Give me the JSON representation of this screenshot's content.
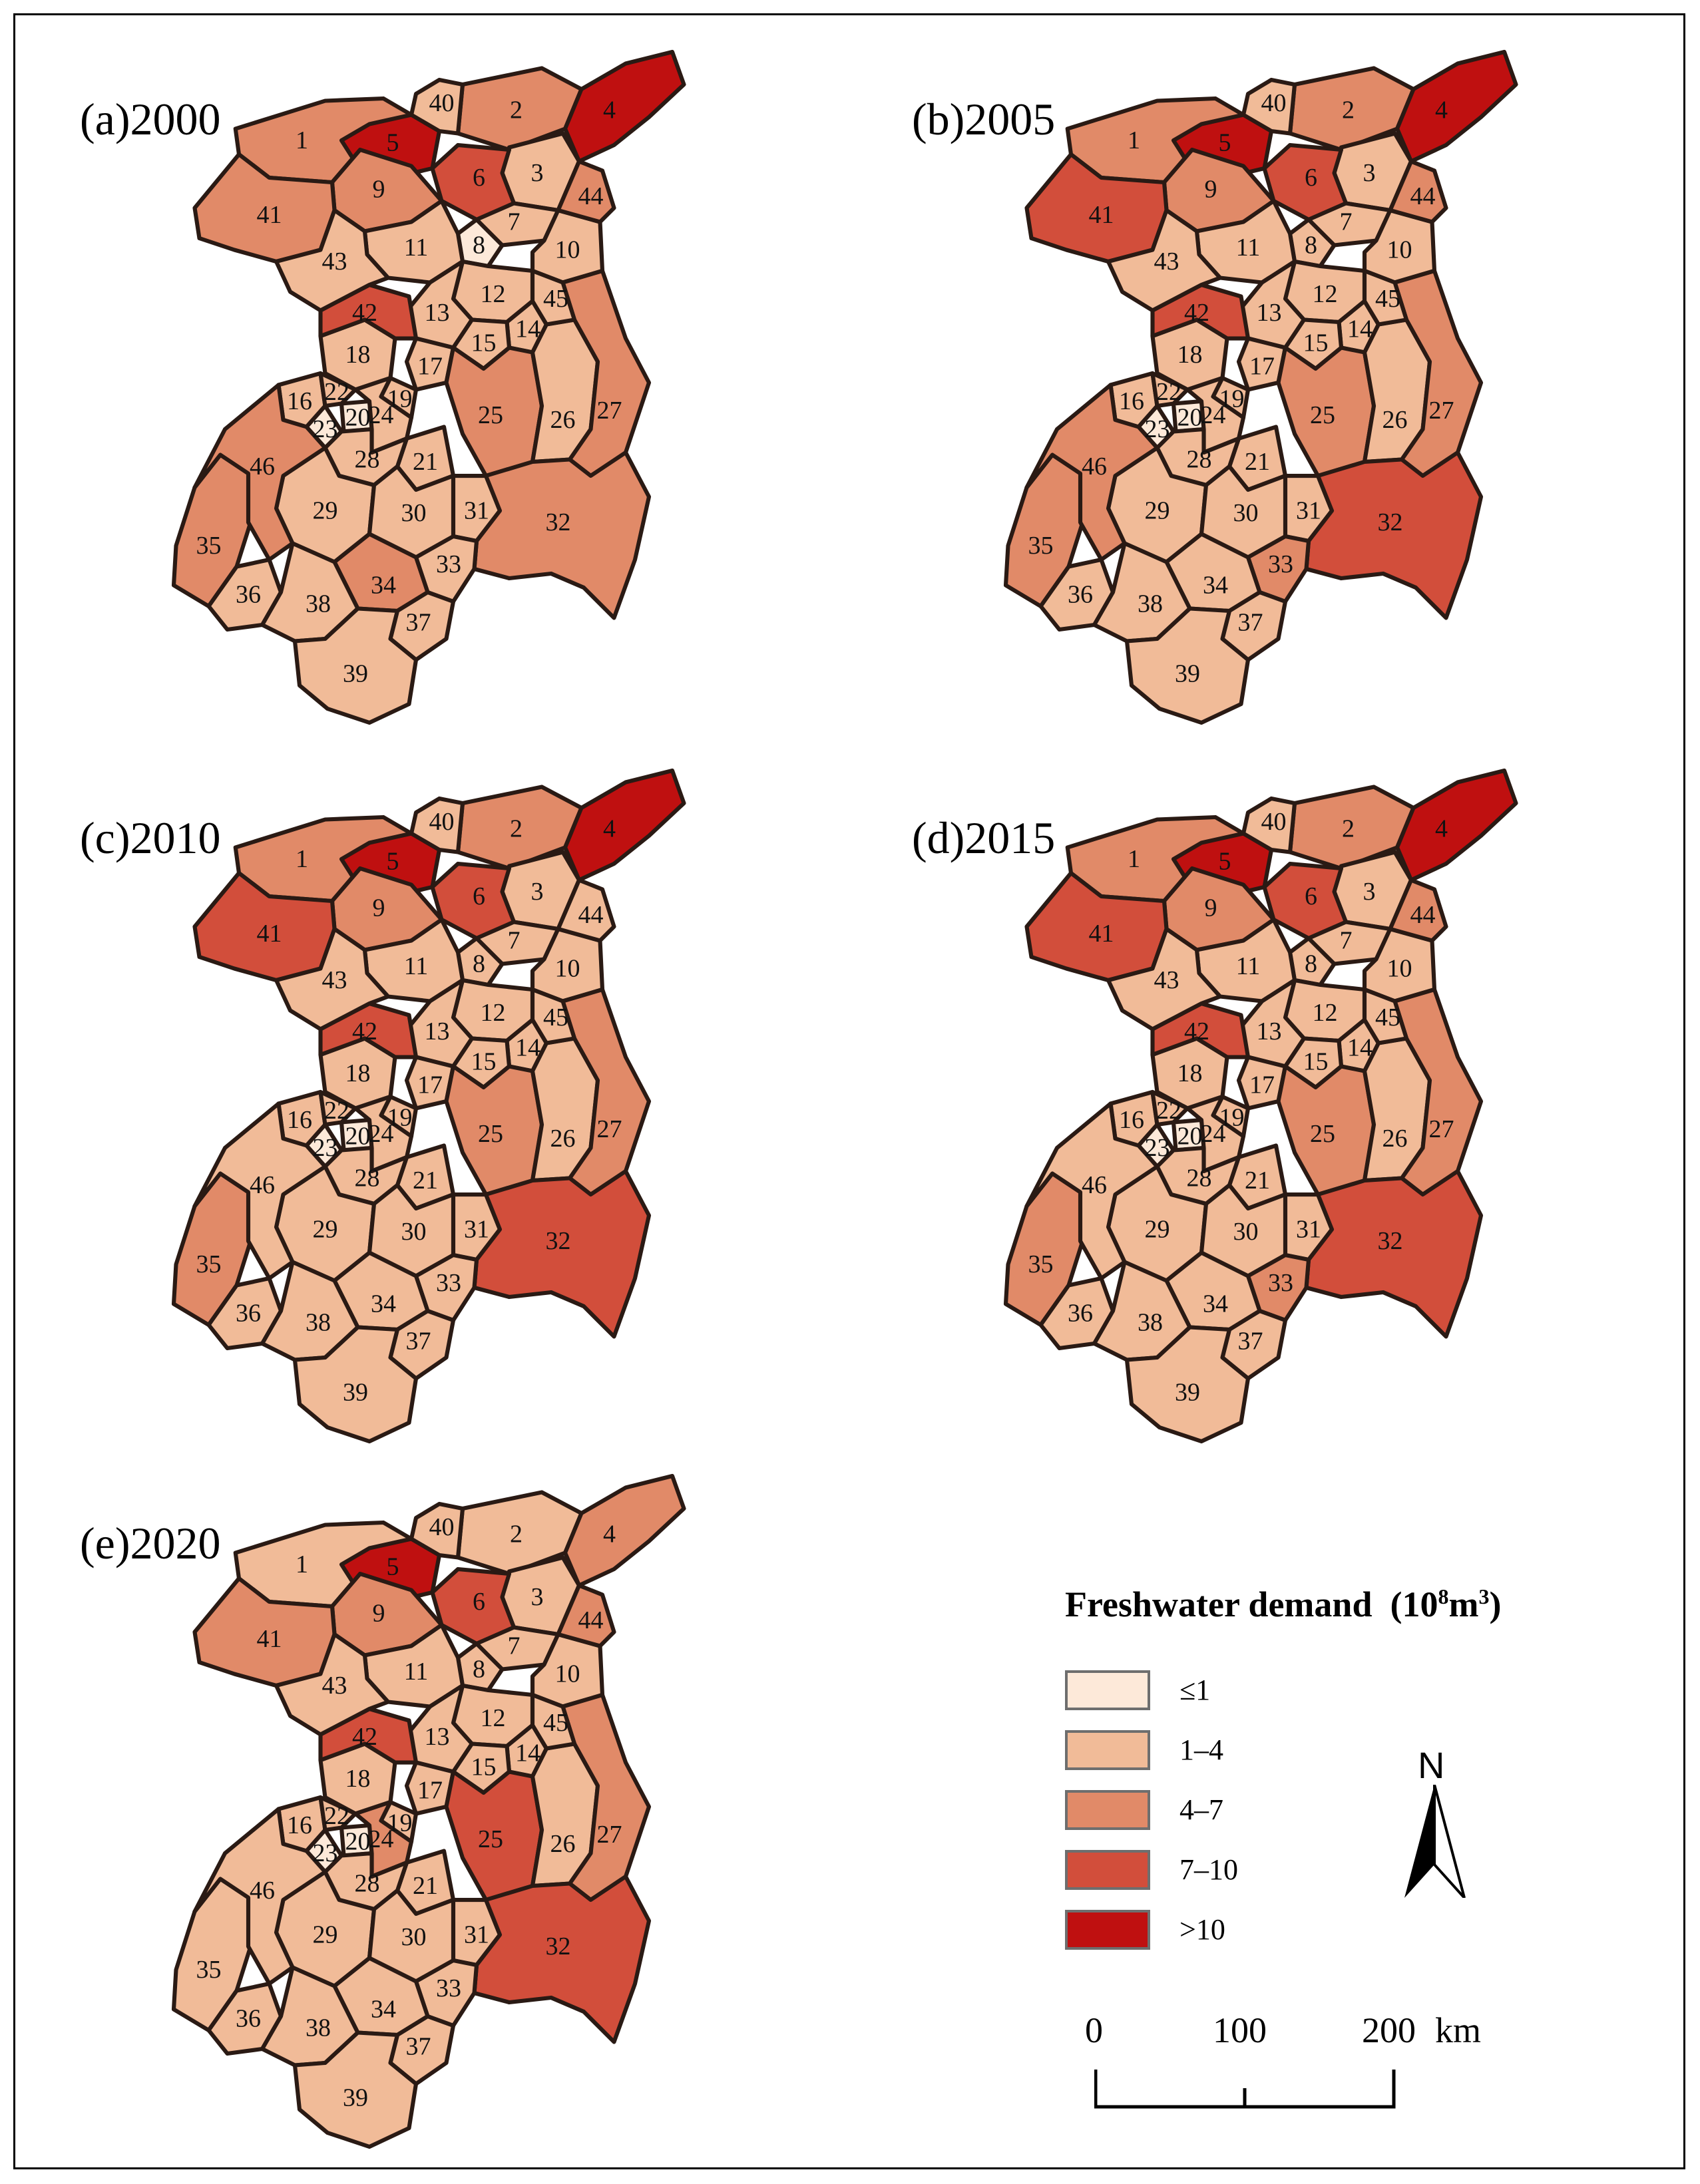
{
  "legend": {
    "title": "Freshwater demand",
    "unit_prefix": "(10",
    "unit_exp1": "8",
    "unit_mid": "m",
    "unit_exp2": "3",
    "unit_suffix": ")",
    "classes": [
      {
        "label": "≤1",
        "color": "#fde9d9"
      },
      {
        "label": "1–4",
        "color": "#f1bb98"
      },
      {
        "label": "4–7",
        "color": "#e18a68"
      },
      {
        "label": "7–10",
        "color": "#d24e3b"
      },
      {
        "label": ">10",
        "color": "#bf1010"
      }
    ]
  },
  "north_label": "N",
  "scale": {
    "ticks": [
      "0",
      "100",
      "200"
    ],
    "unit": "km"
  },
  "map_data": {
    "regions": [
      "1",
      "2",
      "3",
      "4",
      "5",
      "6",
      "7",
      "8",
      "9",
      "10",
      "11",
      "12",
      "13",
      "14",
      "15",
      "16",
      "17",
      "18",
      "19",
      "20",
      "21",
      "22",
      "23",
      "24",
      "25",
      "26",
      "27",
      "28",
      "29",
      "30",
      "31",
      "32",
      "33",
      "34",
      "35",
      "36",
      "37",
      "38",
      "39",
      "40",
      "41",
      "42",
      "43",
      "44",
      "45",
      "46"
    ],
    "panels": [
      {
        "title": "(a)2000",
        "classes": {
          "1": 3,
          "2": 3,
          "3": 2,
          "4": 5,
          "5": 5,
          "6": 4,
          "7": 2,
          "8": 1,
          "9": 3,
          "10": 2,
          "11": 2,
          "12": 2,
          "13": 2,
          "14": 2,
          "15": 2,
          "16": 2,
          "17": 2,
          "18": 2,
          "19": 2,
          "20": 1,
          "21": 2,
          "22": 2,
          "23": 1,
          "24": 2,
          "25": 3,
          "26": 2,
          "27": 3,
          "28": 2,
          "29": 2,
          "30": 2,
          "31": 2,
          "32": 3,
          "33": 2,
          "34": 3,
          "35": 3,
          "36": 2,
          "37": 2,
          "38": 2,
          "39": 2,
          "40": 2,
          "41": 3,
          "42": 4,
          "43": 2,
          "44": 3,
          "45": 2,
          "46": 3
        }
      },
      {
        "title": "(b)2005",
        "classes": {
          "1": 3,
          "2": 3,
          "3": 2,
          "4": 5,
          "5": 5,
          "6": 4,
          "7": 2,
          "8": 2,
          "9": 3,
          "10": 2,
          "11": 2,
          "12": 2,
          "13": 2,
          "14": 2,
          "15": 2,
          "16": 2,
          "17": 2,
          "18": 2,
          "19": 2,
          "20": 1,
          "21": 2,
          "22": 2,
          "23": 1,
          "24": 2,
          "25": 3,
          "26": 2,
          "27": 3,
          "28": 2,
          "29": 2,
          "30": 2,
          "31": 2,
          "32": 4,
          "33": 3,
          "34": 2,
          "35": 3,
          "36": 2,
          "37": 2,
          "38": 2,
          "39": 2,
          "40": 2,
          "41": 4,
          "42": 4,
          "43": 2,
          "44": 3,
          "45": 2,
          "46": 3
        }
      },
      {
        "title": "(c)2010",
        "classes": {
          "1": 3,
          "2": 3,
          "3": 2,
          "4": 5,
          "5": 5,
          "6": 4,
          "7": 2,
          "8": 2,
          "9": 3,
          "10": 2,
          "11": 2,
          "12": 2,
          "13": 2,
          "14": 2,
          "15": 2,
          "16": 2,
          "17": 2,
          "18": 2,
          "19": 2,
          "20": 1,
          "21": 2,
          "22": 2,
          "23": 1,
          "24": 2,
          "25": 3,
          "26": 2,
          "27": 3,
          "28": 2,
          "29": 2,
          "30": 2,
          "31": 2,
          "32": 4,
          "33": 2,
          "34": 2,
          "35": 3,
          "36": 2,
          "37": 2,
          "38": 2,
          "39": 2,
          "40": 2,
          "41": 4,
          "42": 4,
          "43": 2,
          "44": 2,
          "45": 2,
          "46": 2
        }
      },
      {
        "title": "(d)2015",
        "classes": {
          "1": 3,
          "2": 3,
          "3": 2,
          "4": 5,
          "5": 5,
          "6": 4,
          "7": 2,
          "8": 2,
          "9": 3,
          "10": 2,
          "11": 2,
          "12": 2,
          "13": 2,
          "14": 2,
          "15": 2,
          "16": 2,
          "17": 2,
          "18": 2,
          "19": 2,
          "20": 1,
          "21": 2,
          "22": 2,
          "23": 1,
          "24": 2,
          "25": 3,
          "26": 2,
          "27": 3,
          "28": 2,
          "29": 2,
          "30": 2,
          "31": 2,
          "32": 4,
          "33": 3,
          "34": 2,
          "35": 3,
          "36": 2,
          "37": 2,
          "38": 2,
          "39": 2,
          "40": 2,
          "41": 4,
          "42": 4,
          "43": 2,
          "44": 3,
          "45": 2,
          "46": 2
        }
      },
      {
        "title": "(e)2020",
        "classes": {
          "1": 2,
          "2": 2,
          "3": 2,
          "4": 3,
          "5": 5,
          "6": 4,
          "7": 2,
          "8": 2,
          "9": 3,
          "10": 2,
          "11": 2,
          "12": 2,
          "13": 2,
          "14": 2,
          "15": 2,
          "16": 2,
          "17": 2,
          "18": 2,
          "19": 2,
          "20": 1,
          "21": 2,
          "22": 2,
          "23": 1,
          "24": 3,
          "25": 4,
          "26": 2,
          "27": 3,
          "28": 2,
          "29": 2,
          "30": 2,
          "31": 2,
          "32": 4,
          "33": 2,
          "34": 2,
          "35": 2,
          "36": 2,
          "37": 2,
          "38": 2,
          "39": 2,
          "40": 2,
          "41": 3,
          "42": 4,
          "43": 2,
          "44": 3,
          "45": 2,
          "46": 2
        }
      }
    ]
  }
}
